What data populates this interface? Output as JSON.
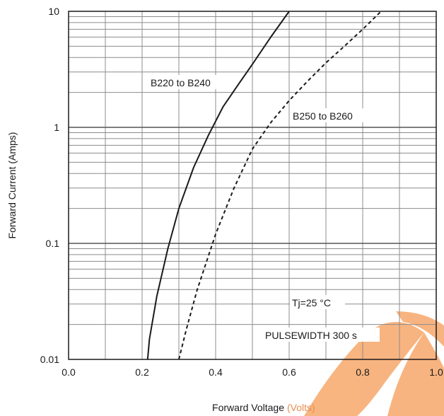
{
  "chart_data": {
    "type": "line",
    "title": "",
    "xlabel": "Forward Voltage",
    "xlabel_unit": "(Volts)",
    "ylabel": "Forward Current (Amps)",
    "xlim": [
      0.0,
      1.0
    ],
    "ylim": [
      0.01,
      10
    ],
    "yscale": "log",
    "grid": true,
    "x_ticks": [
      "0.0",
      "0.2",
      "0.4",
      "0.6",
      "0.8",
      "1.0"
    ],
    "y_ticks": [
      "0.01",
      "0.1",
      "1",
      "10"
    ],
    "series": [
      {
        "name": "B220 to B240",
        "style": "solid",
        "x": [
          0.215,
          0.22,
          0.24,
          0.27,
          0.3,
          0.34,
          0.38,
          0.42,
          0.46,
          0.5,
          0.55,
          0.6
        ],
        "y": [
          0.01,
          0.015,
          0.035,
          0.09,
          0.2,
          0.45,
          0.85,
          1.5,
          2.3,
          3.5,
          6.0,
          10.0
        ]
      },
      {
        "name": "B250 to B260",
        "style": "dashed",
        "x": [
          0.3,
          0.32,
          0.35,
          0.4,
          0.45,
          0.5,
          0.55,
          0.6,
          0.65,
          0.7,
          0.75,
          0.8,
          0.85
        ],
        "y": [
          0.01,
          0.018,
          0.04,
          0.12,
          0.3,
          0.65,
          1.1,
          1.7,
          2.5,
          3.6,
          5.0,
          7.0,
          10.0
        ]
      }
    ],
    "annotations": {
      "series1_label": "B220 to B240",
      "series2_label": "B250 to B260",
      "temperature": "Tj=25 °C",
      "pulsewidth": "PULSEWIDTH 300  s"
    },
    "colors": {
      "line": "#1a1a1a",
      "grid": "#8c8c8c",
      "watermark": "#f7a86a"
    }
  }
}
